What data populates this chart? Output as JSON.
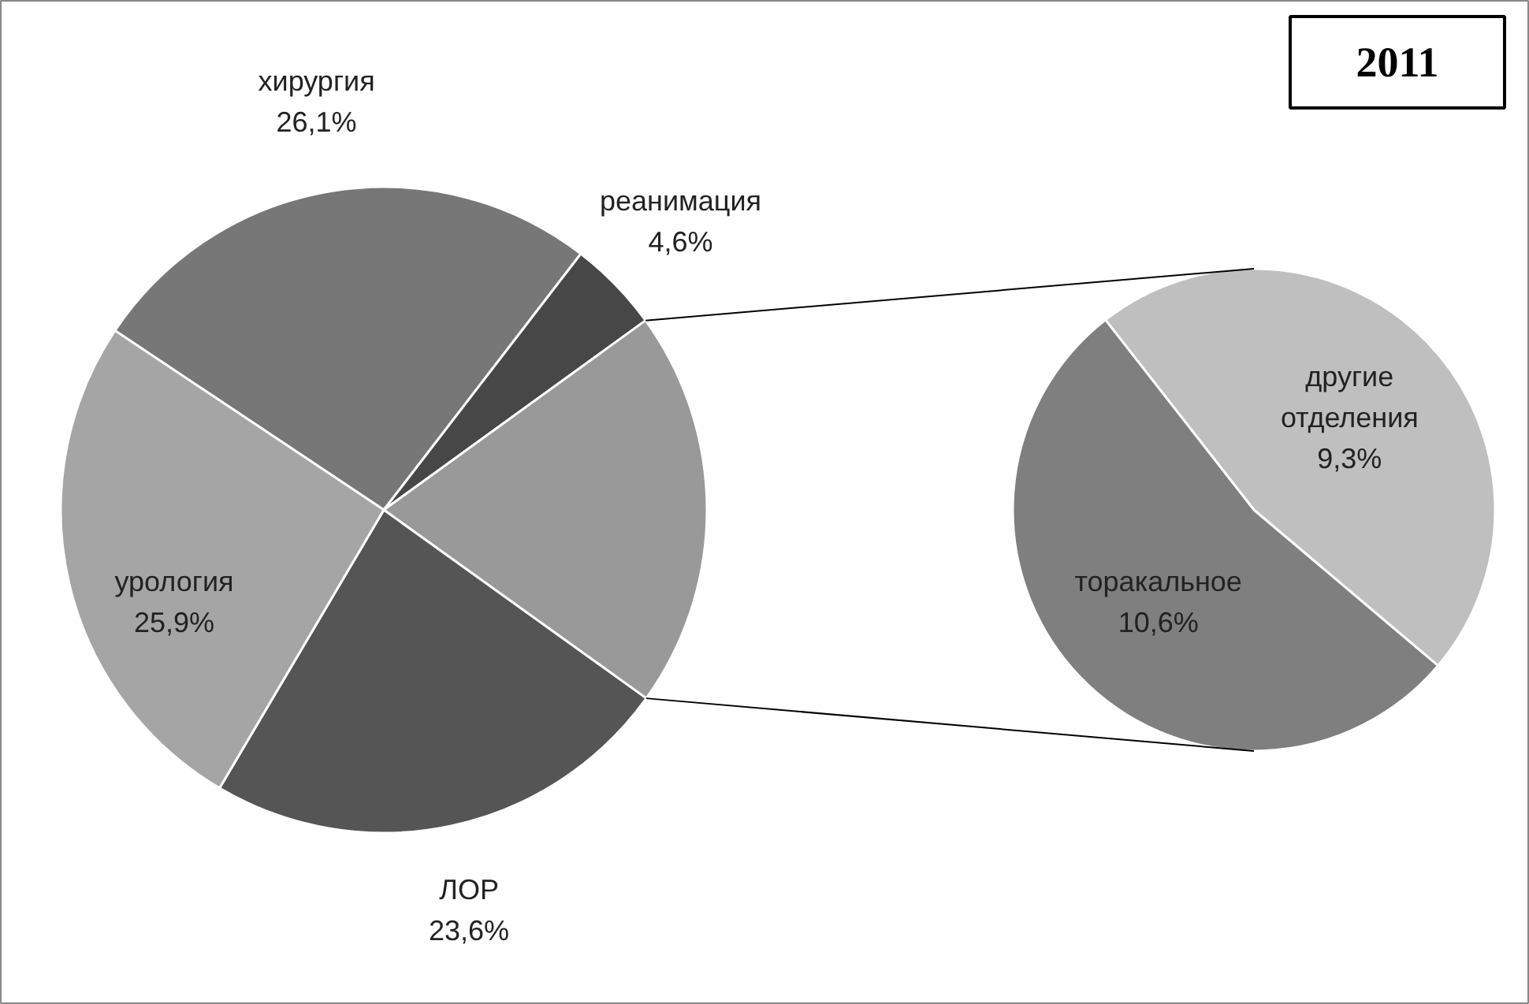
{
  "chart_data": [
    {
      "type": "pie",
      "categories": [
        "хирургия",
        "реанимация",
        null,
        "ЛОР",
        "урология"
      ],
      "values": [
        26.1,
        4.6,
        19.9,
        23.6,
        25.9
      ],
      "colors": [
        "#777777",
        "#474747",
        "#999999",
        "#555555",
        "#a5a5a5"
      ],
      "value_labels": [
        "26,1%",
        "4,6%",
        null,
        "23,6%",
        "25,9%"
      ]
    },
    {
      "type": "pie",
      "title": "2011",
      "categories": [
        "другие отделения",
        "торакальное"
      ],
      "values": [
        9.3,
        10.6
      ],
      "colors": [
        "#bfbfbf",
        "#7f7f7f"
      ],
      "value_labels": [
        "9,3%",
        "10,6%"
      ]
    }
  ]
}
